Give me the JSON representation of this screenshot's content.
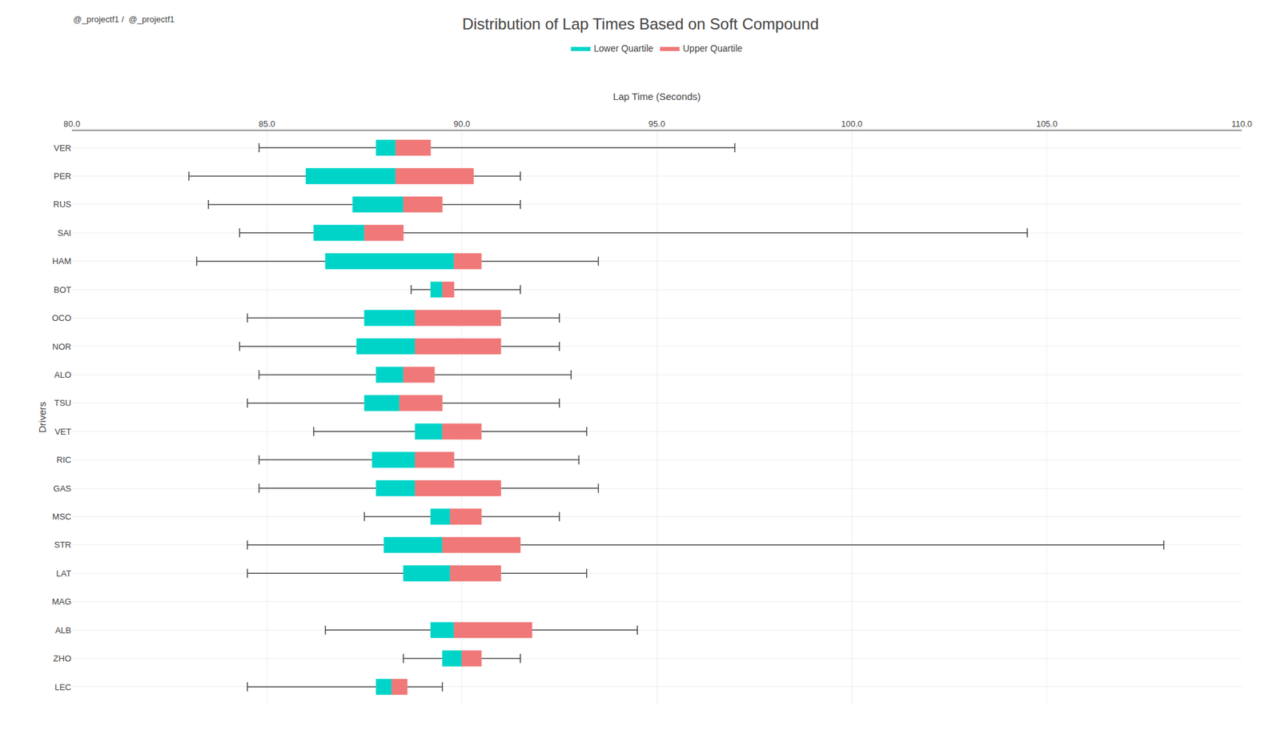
{
  "chart_data": {
    "type": "box",
    "orientation": "horizontal",
    "title": "Distribution of Lap Times Based on Soft Compound",
    "xlabel": "Lap Time (Seconds)",
    "ylabel": "Drivers",
    "annotation": "@_projectf1 /  @_projectf1",
    "categories": [
      "VER",
      "PER",
      "RUS",
      "SAI",
      "HAM",
      "BOT",
      "OCO",
      "NOR",
      "ALO",
      "TSU",
      "VET",
      "RIC",
      "GAS",
      "MSC",
      "STR",
      "LAT",
      "MAG",
      "ALB",
      "ZHO",
      "LEC"
    ],
    "whisker_low": [
      84.8,
      83.0,
      83.5,
      84.3,
      83.2,
      88.7,
      84.5,
      84.3,
      84.8,
      84.5,
      86.2,
      84.8,
      84.8,
      87.5,
      84.5,
      84.5,
      null,
      86.5,
      88.5,
      84.5
    ],
    "q1": [
      87.8,
      86.0,
      87.2,
      86.2,
      86.5,
      89.2,
      87.5,
      87.3,
      87.8,
      87.5,
      88.8,
      87.7,
      87.8,
      89.2,
      88.0,
      88.5,
      null,
      89.2,
      89.5,
      87.8
    ],
    "median": [
      88.3,
      88.3,
      88.5,
      87.5,
      89.8,
      89.5,
      88.8,
      88.8,
      88.5,
      88.4,
      89.5,
      88.8,
      88.8,
      89.7,
      89.5,
      89.7,
      null,
      89.8,
      90.0,
      88.2
    ],
    "q3": [
      89.2,
      90.3,
      89.5,
      88.5,
      90.5,
      89.8,
      91.0,
      91.0,
      89.3,
      89.5,
      90.5,
      89.8,
      91.0,
      90.5,
      91.5,
      91.0,
      null,
      91.8,
      90.5,
      88.6
    ],
    "whisker_high": [
      97.0,
      91.5,
      91.5,
      104.5,
      93.5,
      91.5,
      92.5,
      92.5,
      92.8,
      92.5,
      93.2,
      93.0,
      93.5,
      92.5,
      108.0,
      93.2,
      null,
      94.5,
      91.5,
      89.5
    ],
    "series": [
      {
        "name": "Lower Quartile",
        "color": "#00d4c8"
      },
      {
        "name": "Upper Quartile",
        "color": "#f07878"
      }
    ],
    "xlim": [
      80.0,
      110.0
    ],
    "xticks": [
      {
        "value": 80,
        "label": "80.0"
      },
      {
        "value": 85,
        "label": "85.0"
      },
      {
        "value": 90,
        "label": "90.0"
      },
      {
        "value": 95,
        "label": "95.0"
      },
      {
        "value": 100,
        "label": "100.0"
      },
      {
        "value": 105,
        "label": "105.0"
      },
      {
        "value": 110,
        "label": "110.0"
      }
    ],
    "grid": true,
    "legend": "top"
  }
}
